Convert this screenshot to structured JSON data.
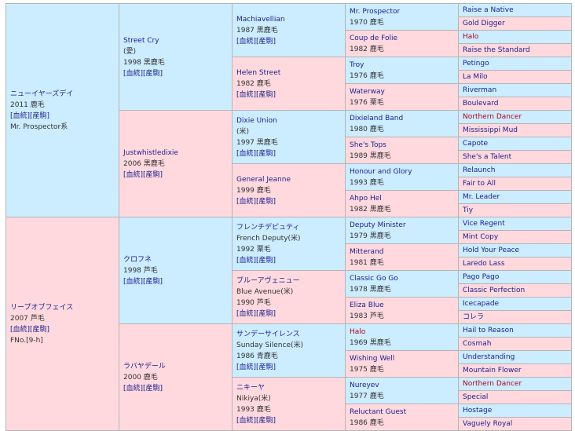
{
  "sire": {
    "name": "ニューイヤーズデイ",
    "born": "2011 鹿毛",
    "link": "[血統][産駒]",
    "extra": "Mr. Prospector系"
  },
  "dam": {
    "name": "リープオブフェイス",
    "born": "2007 芦毛",
    "link": "[血統][産駒]",
    "extra": "FNo.[9-h]"
  },
  "g2": [
    {
      "name": "Street Cry",
      "sub": "(愛)",
      "born": "1998 黒鹿毛",
      "link": "[血統][産駒]"
    },
    {
      "name": "Justwhistledixie",
      "born": "2006 黒鹿毛",
      "link": "[血統][産駒]"
    },
    {
      "name": "クロフネ",
      "born": "1998 芦毛",
      "link": "[血統][産駒]"
    },
    {
      "name": "ラバヤデール",
      "born": "2000 鹿毛",
      "link": "[血統][産駒]"
    }
  ],
  "g3": [
    {
      "name": "Machiavellian",
      "born": "1987 黒鹿毛",
      "link": "[血統][産駒]"
    },
    {
      "name": "Helen Street",
      "born": "1982 鹿毛",
      "link": "[血統][産駒]"
    },
    {
      "name": "Dixie Union",
      "sub": "(米)",
      "born": "1997 黒鹿毛",
      "link": "[血統][産駒]"
    },
    {
      "name": "General Jeanne",
      "born": "1999 鹿毛",
      "link": "[血統][産駒]"
    },
    {
      "name": "フレンチデピュティ",
      "sub": "French Deputy(米)",
      "born": "1992 栗毛",
      "link": "[血統][産駒]"
    },
    {
      "name": "ブルーアヴェニュー",
      "sub": "Blue Avenue(米)",
      "born": "1990 芦毛",
      "link": "[血統][産駒]"
    },
    {
      "name": "サンデーサイレンス",
      "sub": "Sunday Silence(米)",
      "born": "1986 青鹿毛",
      "link": "[血統][産駒]"
    },
    {
      "name": "ニキーヤ",
      "sub": "Nikiya(米)",
      "born": "1993 鹿毛",
      "link": "[血統][産駒]"
    }
  ],
  "g4": [
    {
      "name": "Mr. Prospector",
      "born": "1970 鹿毛"
    },
    {
      "name": "Coup de Folie",
      "born": "1982 鹿毛"
    },
    {
      "name": "Troy",
      "born": "1976 鹿毛"
    },
    {
      "name": "Waterway",
      "born": "1976 栗毛"
    },
    {
      "name": "Dixieland Band",
      "born": "1980 鹿毛"
    },
    {
      "name": "She's Tops",
      "born": "1989 黒鹿毛"
    },
    {
      "name": "Honour and Glory",
      "born": "1993 鹿毛"
    },
    {
      "name": "Ahpo Hel",
      "born": "1982 黒鹿毛"
    },
    {
      "name": "Deputy Minister",
      "born": "1979 黒鹿毛"
    },
    {
      "name": "Mitterand",
      "born": "1981 鹿毛"
    },
    {
      "name": "Classic Go Go",
      "born": "1978 黒鹿毛"
    },
    {
      "name": "Eliza Blue",
      "born": "1983 芦毛"
    },
    {
      "name": "Halo",
      "born": "1969 黒鹿毛"
    },
    {
      "name": "Wishing Well",
      "born": "1975 鹿毛"
    },
    {
      "name": "Nureyev",
      "born": "1977 鹿毛"
    },
    {
      "name": "Reluctant Guest",
      "born": "1986 鹿毛"
    }
  ],
  "g5": [
    "Raise a Native",
    "Gold Digger",
    "Halo",
    "Raise the Standard",
    "Petingo",
    "La Milo",
    "Riverman",
    "Boulevard",
    "Northern Dancer",
    "Mississippi Mud",
    "Capote",
    "She's a Talent",
    "Relaunch",
    "Fair to All",
    "Mr. Leader",
    "Tiy",
    "Vice Regent",
    "Mint Copy",
    "Hold Your Peace",
    "Laredo Lass",
    "Pago Pago",
    "Classic Perfection",
    "Icecapade",
    "コレラ",
    "Hail to Reason",
    "Cosmah",
    "Understanding",
    "Mountain Flower",
    "Northern Dancer",
    "Special",
    "Hostage",
    "Vaguely Royal"
  ]
}
